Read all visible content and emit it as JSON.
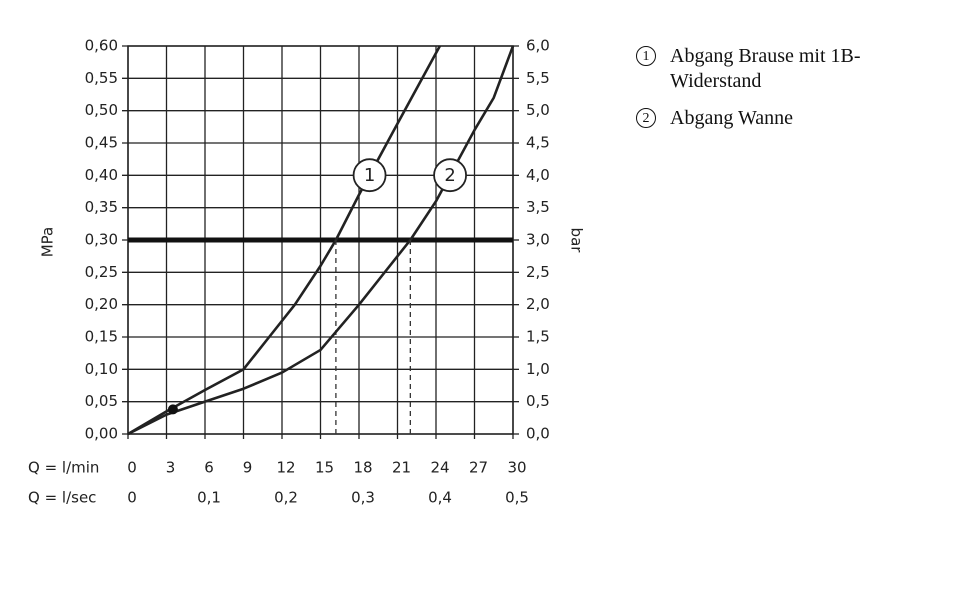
{
  "chart_data": {
    "type": "line",
    "ylabel": "MPa",
    "y2label": "bar",
    "xlabel": "Q = l/min",
    "x2label": "Q = l/sec",
    "xlim": [
      0,
      30
    ],
    "xticks": [
      0,
      3,
      6,
      9,
      12,
      15,
      18,
      21,
      24,
      27,
      30
    ],
    "x2lim": [
      0,
      0.5
    ],
    "x2ticks": [
      0,
      {
        "value": 0.1,
        "label": "0,1"
      },
      {
        "value": 0.2,
        "label": "0,2"
      },
      {
        "value": 0.3,
        "label": "0,3"
      },
      {
        "value": 0.4,
        "label": "0,4"
      },
      {
        "value": 0.5,
        "label": "0,5"
      }
    ],
    "ylim": [
      0,
      0.6
    ],
    "yticks": [
      {
        "value": 0,
        "label": "0,00"
      },
      {
        "value": 0.05,
        "label": "0,05"
      },
      {
        "value": 0.1,
        "label": "0,10"
      },
      {
        "value": 0.15,
        "label": "0,15"
      },
      {
        "value": 0.2,
        "label": "0,20"
      },
      {
        "value": 0.25,
        "label": "0,25"
      },
      {
        "value": 0.3,
        "label": "0,30"
      },
      {
        "value": 0.35,
        "label": "0,35"
      },
      {
        "value": 0.4,
        "label": "0,40"
      },
      {
        "value": 0.45,
        "label": "0,45"
      },
      {
        "value": 0.5,
        "label": "0,50"
      },
      {
        "value": 0.55,
        "label": "0,55"
      },
      {
        "value": 0.6,
        "label": "0,60"
      }
    ],
    "y2lim": [
      0,
      6
    ],
    "y2ticks": [
      {
        "value": 0,
        "label": "0,0"
      },
      {
        "value": 0.5,
        "label": "0,5"
      },
      {
        "value": 1,
        "label": "1,0"
      },
      {
        "value": 1.5,
        "label": "1,5"
      },
      {
        "value": 2,
        "label": "2,0"
      },
      {
        "value": 2.5,
        "label": "2,5"
      },
      {
        "value": 3,
        "label": "3,0"
      },
      {
        "value": 3.5,
        "label": "3,5"
      },
      {
        "value": 4,
        "label": "4,0"
      },
      {
        "value": 4.5,
        "label": "4,5"
      },
      {
        "value": 5,
        "label": "5,0"
      },
      {
        "value": 5.5,
        "label": "5,5"
      },
      {
        "value": 6,
        "label": "6,0"
      }
    ],
    "grid": true,
    "reference_line": 0.3,
    "marker": {
      "x": 3.5,
      "y": 0.038
    },
    "color": "#222222",
    "series": [
      {
        "name": "Abgang Brause mit 1B-Widerstand",
        "label": "1",
        "x": [
          0,
          3,
          6,
          9,
          11,
          13,
          15,
          16.2,
          18,
          21,
          24.3
        ],
        "values": [
          0,
          0.035,
          0.068,
          0.1,
          0.15,
          0.2,
          0.26,
          0.3,
          0.37,
          0.48,
          0.6
        ]
      },
      {
        "name": "Abgang Wanne",
        "label": "2",
        "x": [
          0,
          3,
          6,
          9,
          12,
          15,
          18,
          22,
          24,
          27,
          28.5,
          30
        ],
        "values": [
          0,
          0.03,
          0.05,
          0.07,
          0.095,
          0.13,
          0.2,
          0.3,
          0.36,
          0.47,
          0.52,
          0.6
        ]
      }
    ]
  }
}
